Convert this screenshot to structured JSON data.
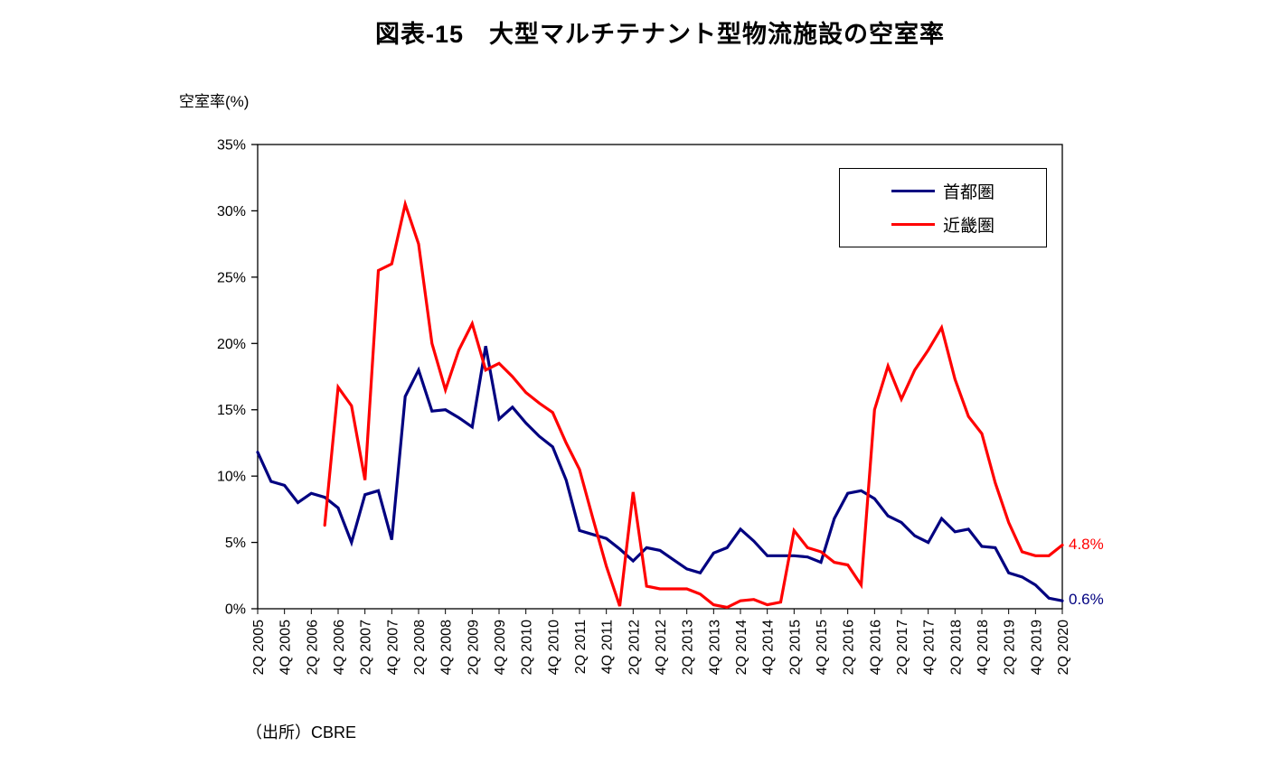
{
  "title": "図表-15　大型マルチテナント型物流施設の空室率",
  "ylabel": "空室率(%)",
  "source": "（出所）CBRE",
  "chart_data": {
    "type": "line",
    "title": "図表-15　大型マルチテナント型物流施設の空室率",
    "xlabel": "",
    "ylabel": "空室率(%)",
    "ylim": [
      0,
      35
    ],
    "grid": false,
    "legend_position": "top-right inside plot",
    "yticks": {
      "values": [
        0,
        5,
        10,
        15,
        20,
        25,
        30,
        35
      ],
      "labels": [
        "0%",
        "5%",
        "10%",
        "15%",
        "20%",
        "25%",
        "30%",
        "35%"
      ]
    },
    "x_tick_every": 2,
    "x_tick_rotation": -90,
    "x": [
      "2Q 2005",
      "3Q 2005",
      "4Q 2005",
      "1Q 2006",
      "2Q 2006",
      "3Q 2006",
      "4Q 2006",
      "1Q 2007",
      "2Q 2007",
      "3Q 2007",
      "4Q 2007",
      "1Q 2008",
      "2Q 2008",
      "3Q 2008",
      "4Q 2008",
      "1Q 2009",
      "2Q 2009",
      "3Q 2009",
      "4Q 2009",
      "1Q 2010",
      "2Q 2010",
      "3Q 2010",
      "4Q 2010",
      "1Q 2011",
      "2Q 2011",
      "3Q 2011",
      "4Q 2011",
      "1Q 2012",
      "2Q 2012",
      "3Q 2012",
      "4Q 2012",
      "1Q 2013",
      "2Q 2013",
      "3Q 2013",
      "4Q 2013",
      "1Q 2014",
      "2Q 2014",
      "3Q 2014",
      "4Q 2014",
      "1Q 2015",
      "2Q 2015",
      "3Q 2015",
      "4Q 2015",
      "1Q 2016",
      "2Q 2016",
      "3Q 2016",
      "4Q 2016",
      "1Q 2017",
      "2Q 2017",
      "3Q 2017",
      "4Q 2017",
      "1Q 2018",
      "2Q 2018",
      "3Q 2018",
      "4Q 2018",
      "1Q 2019",
      "2Q 2019",
      "3Q 2019",
      "4Q 2019",
      "1Q 2020",
      "2Q 2020"
    ],
    "series": [
      {
        "key": "tokyo",
        "name": "首都圏",
        "color": "#000080",
        "end_label": "0.6%",
        "values": [
          11.8,
          9.6,
          9.3,
          8.0,
          8.7,
          8.4,
          7.6,
          5.0,
          8.6,
          8.9,
          5.2,
          16.0,
          18.0,
          14.9,
          15.0,
          14.4,
          13.7,
          19.8,
          14.3,
          15.2,
          14.0,
          13.0,
          12.2,
          9.7,
          5.9,
          5.6,
          5.3,
          4.5,
          3.6,
          4.6,
          4.4,
          3.7,
          3.0,
          2.7,
          4.2,
          4.6,
          6.0,
          5.1,
          4.0,
          4.0,
          4.0,
          3.9,
          3.5,
          6.8,
          8.7,
          8.9,
          8.3,
          7.0,
          6.5,
          5.5,
          5.0,
          6.8,
          5.8,
          6.0,
          4.7,
          4.6,
          2.7,
          2.4,
          1.8,
          0.8,
          0.6
        ]
      },
      {
        "key": "kinki",
        "name": "近畿圏",
        "color": "#ff0000",
        "end_label": "4.8%",
        "values": [
          null,
          null,
          null,
          null,
          null,
          6.3,
          16.7,
          15.3,
          9.7,
          25.5,
          26.0,
          30.5,
          27.5,
          20.0,
          16.5,
          19.5,
          21.5,
          18.0,
          18.5,
          17.5,
          16.3,
          15.5,
          14.8,
          12.5,
          10.5,
          6.8,
          3.2,
          0.2,
          8.8,
          1.7,
          1.5,
          1.5,
          1.5,
          1.1,
          0.3,
          0.1,
          0.6,
          0.7,
          0.3,
          0.5,
          5.9,
          4.6,
          4.3,
          3.5,
          3.3,
          1.8,
          15.0,
          18.3,
          15.8,
          18.0,
          19.5,
          21.2,
          17.3,
          14.5,
          13.2,
          9.5,
          6.5,
          4.3,
          4.0,
          4.0,
          4.8
        ]
      }
    ],
    "source": "（出所）CBRE"
  }
}
